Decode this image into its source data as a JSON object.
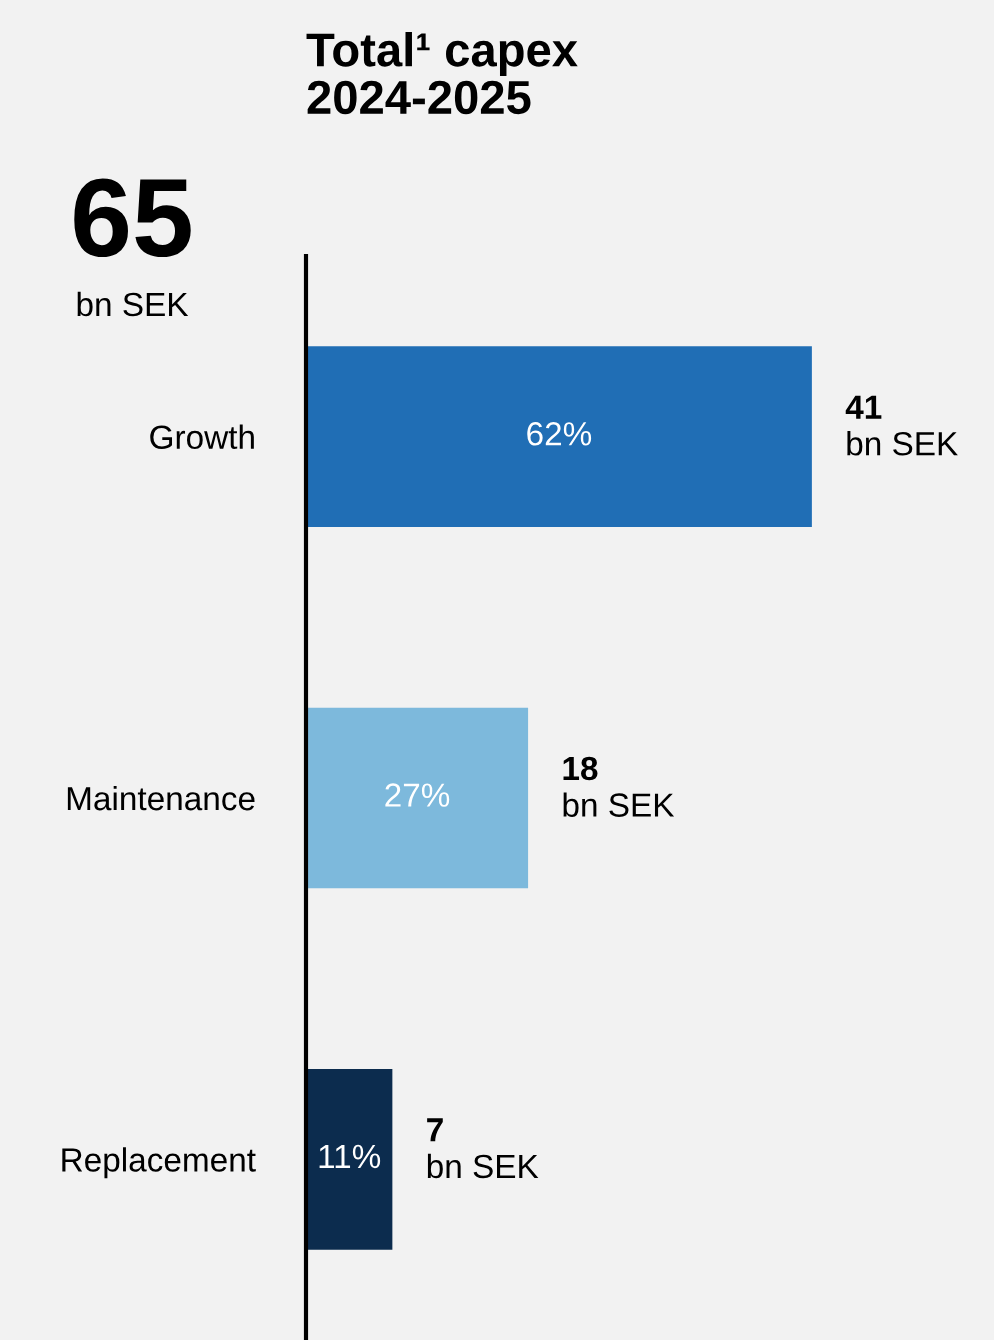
{
  "chart_data": {
    "type": "bar",
    "orientation": "horizontal",
    "title": "Total¹ capex\n2024-2025",
    "categories": [
      "Growth",
      "Maintenance",
      "Replacement"
    ],
    "values": [
      41,
      18,
      7
    ],
    "colors": [
      "#206eb5",
      "#7db9dc",
      "#0c2c4e"
    ],
    "value_labels": [
      "41 bn SEK",
      "18 bn SEK",
      "7 bn SEK"
    ],
    "annotations": [
      "65",
      "bn SEK",
      "62%",
      "27%",
      "11%"
    ],
    "grid": false,
    "legend": false
  }
}
